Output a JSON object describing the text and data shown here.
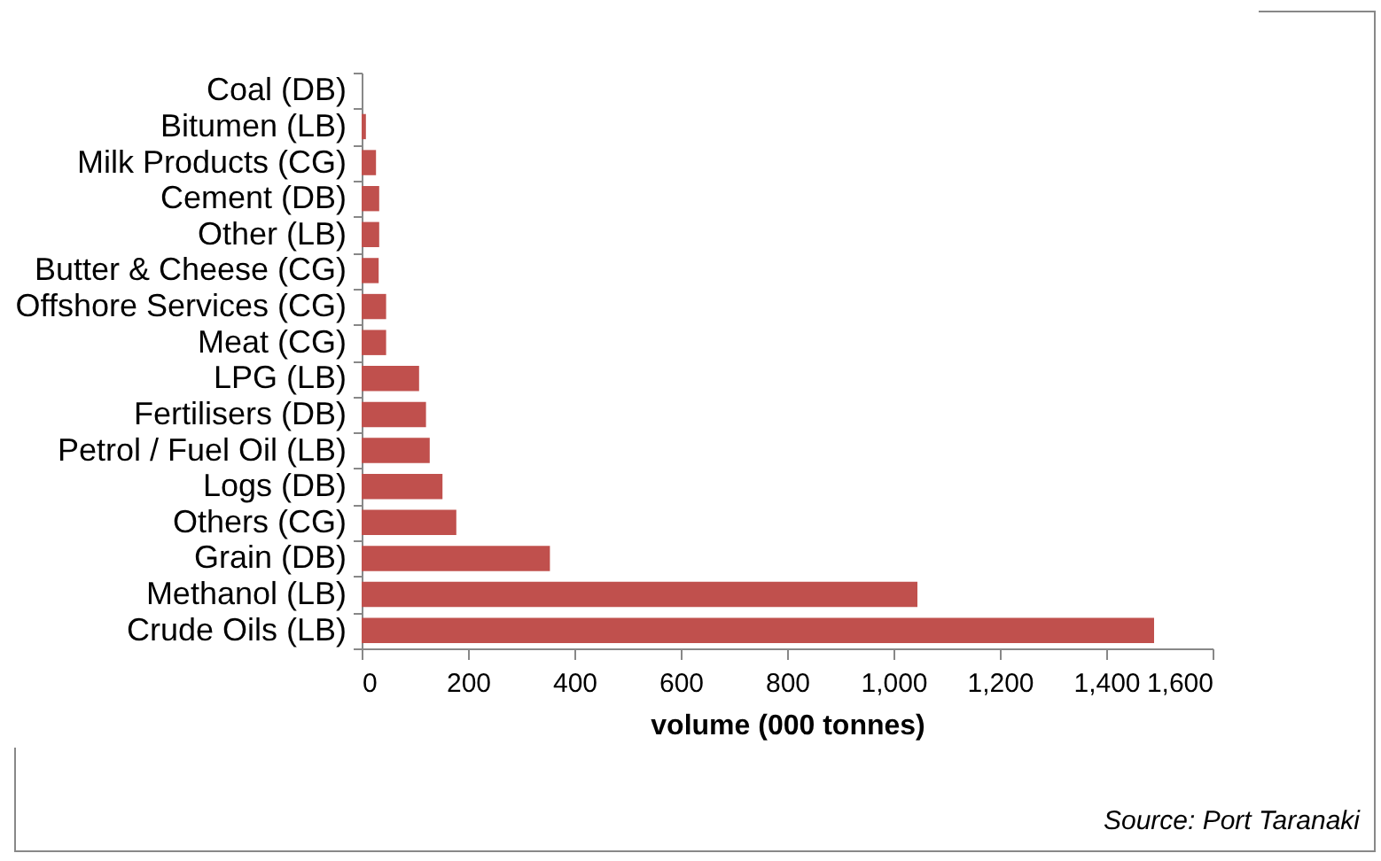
{
  "chart_data": {
    "type": "bar",
    "orientation": "horizontal",
    "xlabel": "volume (000 tonnes)",
    "categories": [
      "Coal (DB)",
      "Bitumen (LB)",
      "Milk Products (CG)",
      "Cement (DB)",
      "Other (LB)",
      "Butter & Cheese (CG)",
      "Offshore Services (CG)",
      "Meat (CG)",
      "LPG  (LB)",
      "Fertilisers (DB)",
      "Petrol / Fuel Oil (LB)",
      "Logs (DB)",
      "Others (CG)",
      "Grain (DB)",
      "Methanol (LB)",
      "Crude Oils (LB)"
    ],
    "values": [
      0,
      8,
      27,
      33,
      33,
      32,
      46,
      46,
      108,
      121,
      128,
      152,
      178,
      354,
      1045,
      1490
    ],
    "color": "#c0504d",
    "xlim": [
      0,
      1600
    ],
    "xticks": [
      0,
      200,
      400,
      600,
      800,
      {
        "value": 1000,
        "label": "1,000"
      },
      {
        "value": 1200,
        "label": "1,200"
      },
      {
        "value": 1400,
        "label": "1,400"
      },
      {
        "value": 1600,
        "label": "1,600"
      }
    ],
    "grid": false,
    "annotations": [
      "Source:  Port Taranaki"
    ]
  }
}
